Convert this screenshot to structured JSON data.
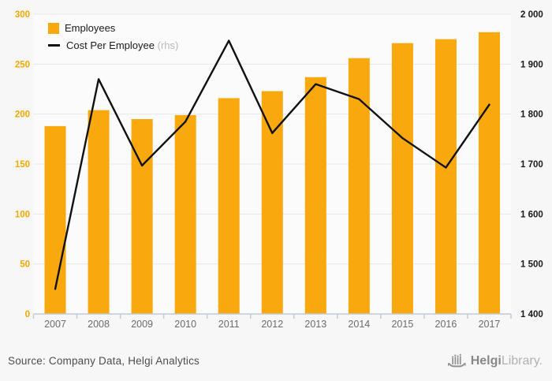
{
  "legend": {
    "employees_label": "Employees",
    "cost_label": "Cost Per Employee",
    "cost_suffix": "(rhs)"
  },
  "footer": {
    "source_text": "Source: Company Data, Helgi Analytics",
    "logo_bold": "Helgi",
    "logo_light": "Library."
  },
  "colors": {
    "bar": "#F9A80D",
    "line": "#111111",
    "left_tick_label": "#F5A800",
    "right_tick_label": "#1a1a1a",
    "year_label": "#6b6b6b",
    "gridline": "#e8e8e8",
    "axis": "#c2cad8",
    "plot_bg": "#fbfbfb"
  },
  "chart_data": {
    "type": "bar+line",
    "title": "",
    "categories": [
      "2007",
      "2008",
      "2009",
      "2010",
      "2011",
      "2012",
      "2013",
      "2014",
      "2015",
      "2016",
      "2017"
    ],
    "series": [
      {
        "name": "Employees",
        "type": "bar",
        "axis": "left",
        "values": [
          188,
          204,
          195,
          199,
          216,
          223,
          237,
          256,
          271,
          275,
          282
        ]
      },
      {
        "name": "Cost Per Employee (rhs)",
        "type": "line",
        "axis": "right",
        "values": [
          1450,
          1870,
          1697,
          1785,
          1947,
          1762,
          1860,
          1830,
          1752,
          1693,
          1819
        ]
      }
    ],
    "left_axis": {
      "min": 0,
      "max": 300,
      "tick_step": 50,
      "tick_labels": [
        "0",
        "50",
        "100",
        "150",
        "200",
        "250",
        "300"
      ]
    },
    "right_axis": {
      "min": 1400,
      "max": 2000,
      "tick_step": 100,
      "tick_labels": [
        "1 400",
        "1 500",
        "1 600",
        "1 700",
        "1 800",
        "1 900",
        "2 000"
      ]
    },
    "grid": true,
    "legend_position": "top-left"
  }
}
